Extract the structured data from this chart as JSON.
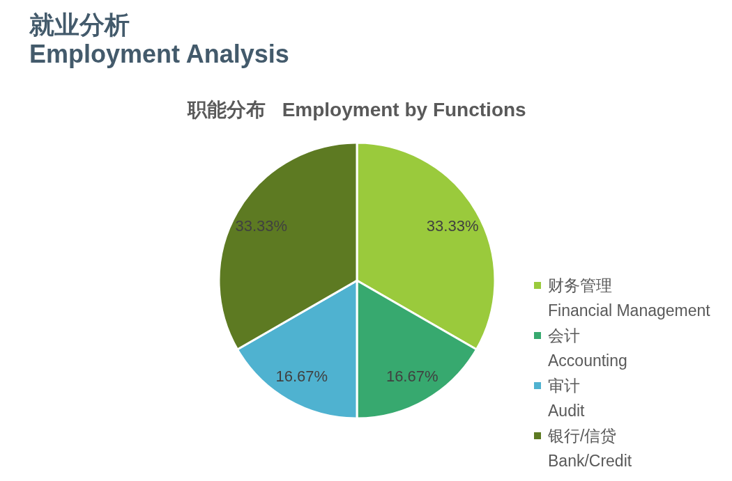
{
  "chart_data": {
    "type": "pie",
    "title": "就业分析\nEmployment Analysis",
    "subtitle": "职能分布   Employment by Functions",
    "categories": [
      "财务管理\nFinancial Management",
      "会计\nAccounting",
      "审计\nAudit",
      "银行/信贷\nBank/Credit"
    ],
    "values": [
      33.33,
      16.67,
      16.67,
      33.33
    ],
    "colors": [
      "#9aca3c",
      "#37a96f",
      "#4fb2d0",
      "#5d7a22"
    ],
    "value_labels": [
      "33.33%",
      "16.67%",
      "16.67%",
      "33.33%"
    ],
    "legend": "right"
  }
}
